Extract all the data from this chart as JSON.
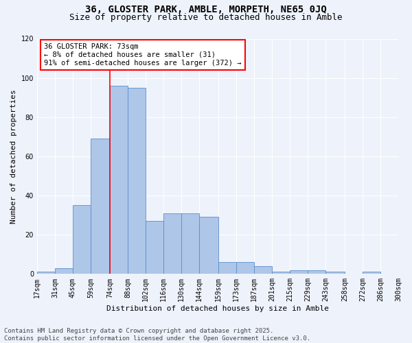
{
  "title_line1": "36, GLOSTER PARK, AMBLE, MORPETH, NE65 0JQ",
  "title_line2": "Size of property relative to detached houses in Amble",
  "xlabel": "Distribution of detached houses by size in Amble",
  "ylabel": "Number of detached properties",
  "bar_color": "#aec6e8",
  "bar_edge_color": "#5b8fc9",
  "background_color": "#eef2fb",
  "grid_color": "#ffffff",
  "bins": [
    17,
    31,
    45,
    59,
    74,
    88,
    102,
    116,
    130,
    144,
    159,
    173,
    187,
    201,
    215,
    229,
    243,
    258,
    272,
    286,
    300
  ],
  "bin_labels": [
    "17sqm",
    "31sqm",
    "45sqm",
    "59sqm",
    "74sqm",
    "88sqm",
    "102sqm",
    "116sqm",
    "130sqm",
    "144sqm",
    "159sqm",
    "173sqm",
    "187sqm",
    "201sqm",
    "215sqm",
    "229sqm",
    "243sqm",
    "258sqm",
    "272sqm",
    "286sqm",
    "300sqm"
  ],
  "values": [
    1,
    3,
    35,
    69,
    96,
    95,
    27,
    31,
    31,
    29,
    6,
    6,
    4,
    1,
    2,
    2,
    1,
    0,
    1,
    0
  ],
  "vline_x": 74,
  "annotation_text": "36 GLOSTER PARK: 73sqm\n← 8% of detached houses are smaller (31)\n91% of semi-detached houses are larger (372) →",
  "annotation_box_color": "white",
  "annotation_box_edgecolor": "red",
  "vline_color": "red",
  "ylim": [
    0,
    120
  ],
  "yticks": [
    0,
    20,
    40,
    60,
    80,
    100,
    120
  ],
  "footer_text": "Contains HM Land Registry data © Crown copyright and database right 2025.\nContains public sector information licensed under the Open Government Licence v3.0.",
  "title_fontsize": 10,
  "subtitle_fontsize": 9,
  "axis_label_fontsize": 8,
  "tick_fontsize": 7,
  "annotation_fontsize": 7.5,
  "footer_fontsize": 6.5
}
